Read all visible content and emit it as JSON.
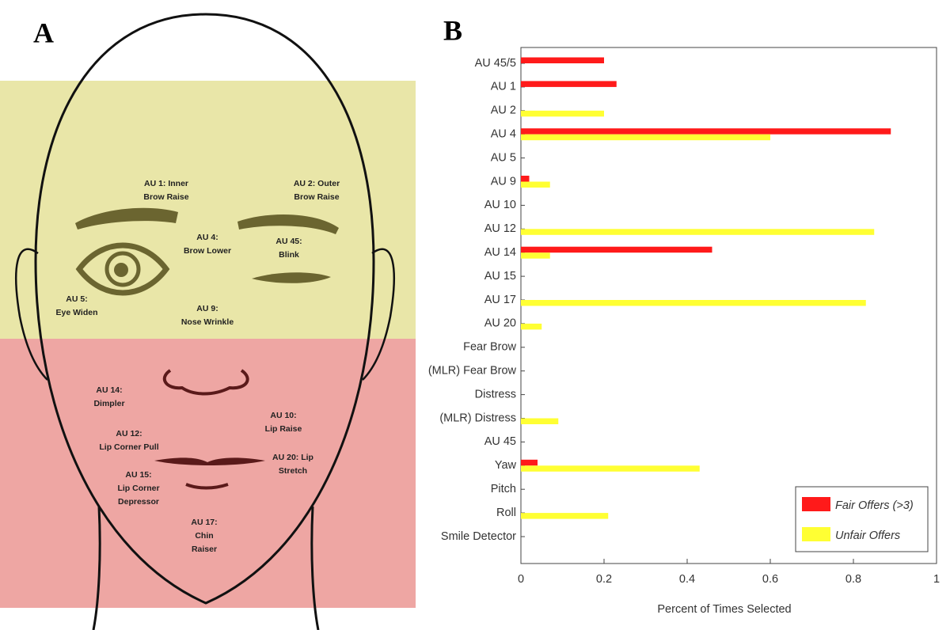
{
  "panel_a": {
    "label": "A",
    "annotations": [
      [
        "AU 1: Inner",
        "Brow Raise"
      ],
      [
        "AU 2: Outer",
        "Brow Raise"
      ],
      [
        "AU 4:",
        "Brow Lower"
      ],
      [
        "AU 45:",
        "Blink"
      ],
      [
        "AU 5:",
        "Eye Widen"
      ],
      [
        "AU 9:",
        "Nose Wrinkle"
      ],
      [
        "AU 14:",
        "Dimpler"
      ],
      [
        "AU 10:",
        "Lip Raise"
      ],
      [
        "AU 12:",
        "Lip Corner Pull"
      ],
      [
        "AU 20: Lip",
        "Stretch"
      ],
      [
        "AU 15:",
        "Lip Corner",
        "Depressor"
      ],
      [
        "AU 17:",
        "Chin",
        "Raiser"
      ]
    ]
  },
  "chart_data": {
    "type": "barh",
    "panel_label": "B",
    "categories": [
      "AU 45/5",
      "AU 1",
      "AU 2",
      "AU 4",
      "AU 5",
      "AU 9",
      "AU 10",
      "AU 12",
      "AU 14",
      "AU 15",
      "AU 17",
      "AU 20",
      "Fear Brow",
      "(MLR) Fear Brow",
      "Distress",
      "(MLR) Distress",
      "AU 45",
      "Yaw",
      "Pitch",
      "Roll",
      "Smile Detector"
    ],
    "series": [
      {
        "name": "Fair Offers (>3)",
        "color": "#ff1a1a",
        "values": [
          0.2,
          0.23,
          0,
          0.89,
          0,
          0.02,
          0,
          0,
          0.46,
          0,
          0,
          0,
          0,
          0,
          0,
          0,
          0,
          0.04,
          0,
          0,
          0
        ]
      },
      {
        "name": "Unfair Offers",
        "color": "#ffff33",
        "values": [
          0,
          0,
          0.2,
          0.6,
          0,
          0.07,
          0,
          0.85,
          0.07,
          0,
          0.83,
          0.05,
          0,
          0,
          0,
          0.09,
          0,
          0.43,
          0,
          0.21,
          0
        ]
      }
    ],
    "x_label": "Percent of Times Selected",
    "xlim": [
      0,
      1
    ],
    "xticks": [
      0,
      0.2,
      0.4,
      0.6,
      0.8,
      1
    ],
    "grid": false,
    "legend": "lower right"
  }
}
